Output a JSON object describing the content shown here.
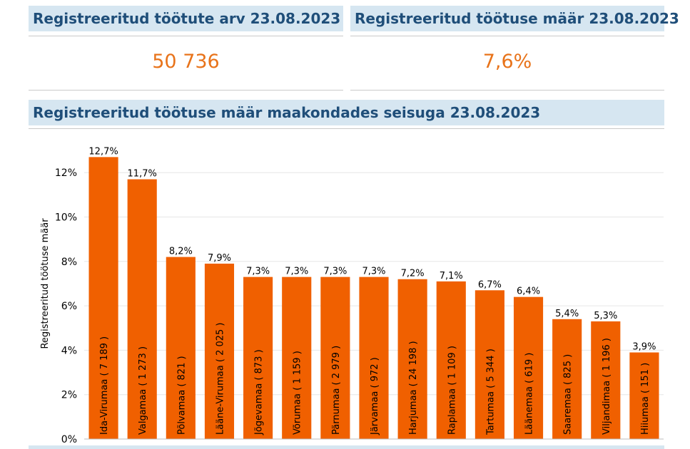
{
  "kpi_left": {
    "title": "Registreeritud töötute arv 23.08.2023",
    "value": "50 736"
  },
  "kpi_right": {
    "title": "Registreeritud töötuse määr 23.08.2023",
    "value": "7,6%"
  },
  "chart_section": {
    "title": "Registreeritud töötuse määr maakondades seisuga 23.08.2023"
  },
  "chart_data": {
    "type": "bar",
    "ylabel": "Registreeritud töötuse määr",
    "xlabel": "",
    "ylim": [
      0,
      13
    ],
    "yticks": [
      0,
      2,
      4,
      6,
      8,
      10,
      12
    ],
    "ytick_labels": [
      "0%",
      "2%",
      "4%",
      "6%",
      "8%",
      "10%",
      "12%"
    ],
    "bar_color": "#f06000",
    "grid": true,
    "categories": [
      "Ida-Virumaa ( 7 189 )",
      "Valgamaa ( 1 273 )",
      "Põlvamaa ( 821 )",
      "Lääne-Virumaa ( 2 025 )",
      "Jõgevamaa ( 873 )",
      "Võrumaa ( 1 159 )",
      "Pärnumaa ( 2 979 )",
      "Järvamaa ( 972 )",
      "Harjumaa ( 24 198 )",
      "Raplamaa ( 1 109 )",
      "Tartumaa ( 5 344 )",
      "Läänemaa ( 619 )",
      "Saaremaa ( 825 )",
      "Viljandimaa ( 1 196 )",
      "Hiiumaa ( 151 )"
    ],
    "values": [
      12.7,
      11.7,
      8.2,
      7.9,
      7.3,
      7.3,
      7.3,
      7.3,
      7.2,
      7.1,
      6.7,
      6.4,
      5.4,
      5.3,
      3.9
    ],
    "value_labels": [
      "12,7%",
      "11,7%",
      "8,2%",
      "7,9%",
      "7,3%",
      "7,3%",
      "7,3%",
      "7,3%",
      "7,2%",
      "7,1%",
      "6,7%",
      "6,4%",
      "5,4%",
      "5,3%",
      "3,9%"
    ]
  }
}
